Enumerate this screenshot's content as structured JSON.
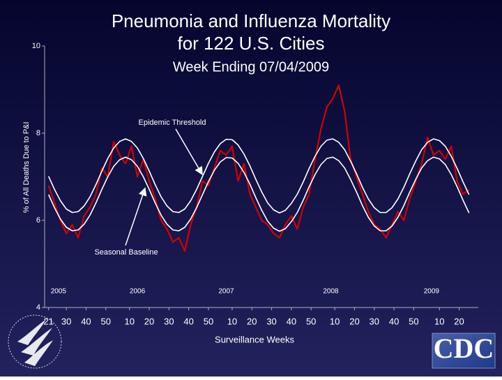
{
  "chart_data": {
    "type": "line",
    "title": [
      "Pneumonia and Influenza Mortality",
      "for 122 U.S. Cities"
    ],
    "subtitle": "Week Ending 07/04/2009",
    "y_label": "% of All Deaths Due to P&I",
    "x_label": "Surveillance Weeks",
    "annotations": [
      "Epidemic Threshold",
      "Seasonal Baseline"
    ],
    "logo": "CDC",
    "x": [
      0,
      3,
      6,
      9,
      12,
      15,
      18,
      21,
      24,
      27,
      30,
      33,
      36,
      39,
      42,
      45,
      48,
      51,
      54,
      57,
      60,
      63,
      66,
      69,
      72,
      75,
      78,
      81,
      84,
      87,
      90,
      93,
      96,
      99,
      102,
      105,
      108,
      111,
      114,
      117,
      120,
      123,
      126,
      129,
      132,
      135,
      138,
      141,
      144,
      147,
      150,
      153,
      156,
      159,
      162,
      165,
      168,
      171,
      174,
      177,
      180,
      183,
      186,
      189,
      192,
      195,
      198,
      201,
      204,
      207,
      210,
      213
    ],
    "series": [
      {
        "color": "#d40000",
        "values": [
          6.8,
          6.4,
          6.0,
          5.7,
          5.9,
          5.6,
          6.1,
          6.3,
          6.6,
          7.2,
          7.0,
          7.8,
          7.5,
          7.3,
          7.7,
          7.0,
          7.4,
          6.9,
          6.5,
          6.0,
          5.8,
          5.5,
          5.6,
          5.3,
          5.9,
          6.3,
          6.9,
          6.8,
          7.2,
          7.6,
          7.5,
          7.7,
          6.9,
          7.3,
          6.6,
          6.3,
          6.0,
          5.9,
          5.7,
          5.6,
          5.9,
          6.1,
          5.8,
          6.3,
          6.6,
          7.4,
          8.1,
          8.6,
          8.8,
          9.1,
          8.5,
          7.4,
          7.0,
          6.6,
          6.2,
          5.9,
          5.8,
          5.6,
          5.9,
          6.2,
          6.0,
          6.5,
          6.9,
          7.3,
          7.9,
          7.5,
          7.6,
          7.4,
          7.7,
          6.9,
          6.6,
          6.7
        ]
      },
      {
        "color": "#ffffff",
        "values": [
          7.01,
          6.71,
          6.45,
          6.26,
          6.18,
          6.2,
          6.33,
          6.54,
          6.82,
          7.13,
          7.42,
          7.66,
          7.81,
          7.87,
          7.81,
          7.66,
          7.42,
          7.13,
          6.82,
          6.54,
          6.33,
          6.2,
          6.18,
          6.26,
          6.45,
          6.71,
          7.01,
          7.31,
          7.57,
          7.76,
          7.86,
          7.85,
          7.73,
          7.52,
          7.25,
          6.94,
          6.65,
          6.4,
          6.24,
          6.17,
          6.23,
          6.39,
          6.6,
          6.88,
          7.19,
          7.47,
          7.7,
          7.84,
          7.87,
          7.79,
          7.62,
          7.36,
          7.07,
          6.76,
          6.49,
          6.29,
          6.18,
          6.18,
          6.29,
          6.49,
          6.76,
          7.07,
          7.36,
          7.62,
          7.79,
          7.87,
          7.83,
          7.7,
          7.47,
          7.19,
          6.88,
          6.59
        ]
      },
      {
        "color": "#ffffff",
        "values": [
          6.59,
          6.29,
          6.03,
          5.84,
          5.76,
          5.78,
          5.91,
          6.12,
          6.4,
          6.71,
          7.0,
          7.24,
          7.39,
          7.45,
          7.39,
          7.24,
          7.0,
          6.71,
          6.4,
          6.12,
          5.91,
          5.78,
          5.76,
          5.84,
          6.03,
          6.29,
          6.59,
          6.89,
          7.15,
          7.34,
          7.44,
          7.43,
          7.31,
          7.1,
          6.83,
          6.52,
          6.23,
          5.98,
          5.82,
          5.75,
          5.81,
          5.97,
          6.18,
          6.46,
          6.77,
          7.05,
          7.28,
          7.42,
          7.45,
          7.37,
          7.2,
          6.94,
          6.65,
          6.34,
          6.07,
          5.87,
          5.76,
          5.76,
          5.87,
          6.07,
          6.34,
          6.65,
          6.94,
          7.2,
          7.37,
          7.45,
          7.41,
          7.28,
          7.05,
          6.77,
          6.46,
          6.17
        ]
      }
    ],
    "xlim": [
      -2,
      217
    ],
    "xticks": [
      {
        "value": 0,
        "label": "21"
      },
      {
        "value": 9,
        "label": "30"
      },
      {
        "value": 19,
        "label": "40"
      },
      {
        "value": 29,
        "label": "50"
      },
      {
        "value": 41,
        "label": "10"
      },
      {
        "value": 51,
        "label": "20"
      },
      {
        "value": 61,
        "label": "30"
      },
      {
        "value": 71,
        "label": "40"
      },
      {
        "value": 81,
        "label": "50"
      },
      {
        "value": 93,
        "label": "10"
      },
      {
        "value": 103,
        "label": "20"
      },
      {
        "value": 113,
        "label": "30"
      },
      {
        "value": 123,
        "label": "40"
      },
      {
        "value": 133,
        "label": "50"
      },
      {
        "value": 145,
        "label": "10"
      },
      {
        "value": 155,
        "label": "20"
      },
      {
        "value": 165,
        "label": "30"
      },
      {
        "value": 175,
        "label": "40"
      },
      {
        "value": 185,
        "label": "50"
      },
      {
        "value": 198,
        "label": "10"
      },
      {
        "value": 208,
        "label": "20"
      }
    ],
    "year_labels": [
      {
        "value": 5,
        "label": "2005"
      },
      {
        "value": 45,
        "label": "2006"
      },
      {
        "value": 90,
        "label": "2007"
      },
      {
        "value": 143,
        "label": "2008"
      },
      {
        "value": 194,
        "label": "2009"
      }
    ],
    "ylim": [
      4,
      10
    ],
    "yticks": [
      4,
      6,
      8,
      10
    ],
    "grid": false
  }
}
